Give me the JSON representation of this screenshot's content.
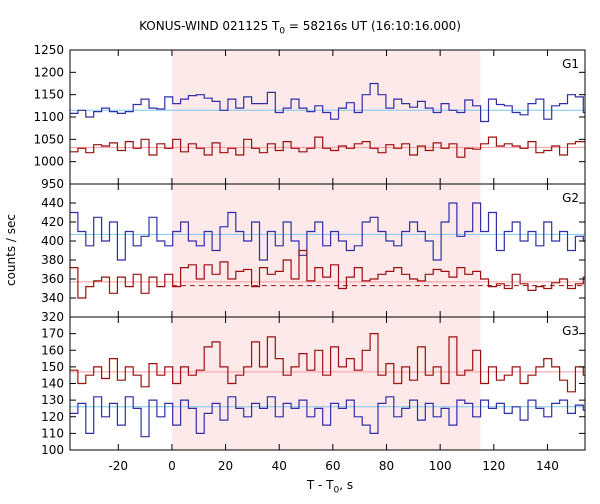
{
  "title": {
    "main": "KONUS-WIND 021125 T",
    "sub": "0",
    "rest": " = 58216s UT (16:10:16.000)"
  },
  "xlabel": {
    "main": "T - T",
    "sub": "0",
    "rest": ", s"
  },
  "ylabel": "counts / sec",
  "colors": {
    "red": "#9b0f0f",
    "blue": "#2f2fa8",
    "red_bg": "#ff9aa0",
    "blue_bg": "#7ec8ec",
    "shade": "#fde8ea"
  },
  "chart_data": {
    "type": "line",
    "shared_x": {
      "range": [
        -38,
        154
      ],
      "ticks": [
        -20,
        0,
        20,
        40,
        60,
        80,
        100,
        120,
        140
      ],
      "bin_width": 2.944,
      "bins_start": -38,
      "highlight_interval": [
        0,
        115
      ]
    },
    "panels": [
      {
        "label": "G1",
        "ylim": [
          950,
          1250
        ],
        "yticks": [
          950,
          1000,
          1050,
          1100,
          1150,
          1200,
          1250
        ],
        "series": [
          {
            "color": "blue",
            "background": 1115,
            "values": [
              1108,
              1115,
              1100,
              1112,
              1120,
              1112,
              1108,
              1112,
              1128,
              1140,
              1120,
              1118,
              1145,
              1130,
              1140,
              1148,
              1150,
              1142,
              1135,
              1115,
              1140,
              1120,
              1145,
              1130,
              1130,
              1155,
              1110,
              1120,
              1140,
              1120,
              1112,
              1125,
              1110,
              1095,
              1120,
              1132,
              1110,
              1150,
              1175,
              1150,
              1120,
              1140,
              1130,
              1122,
              1135,
              1120,
              1110,
              1130,
              1115,
              1110,
              1138,
              1125,
              1090,
              1140,
              1128,
              1125,
              1110,
              1105,
              1130,
              1140,
              1095,
              1125,
              1130,
              1150,
              1145,
              1110
            ]
          },
          {
            "color": "red",
            "background": 1032,
            "values": [
              1022,
              1030,
              1020,
              1038,
              1035,
              1042,
              1025,
              1045,
              1030,
              1050,
              1015,
              1040,
              1030,
              1050,
              1022,
              1040,
              1030,
              1015,
              1042,
              1020,
              1030,
              1015,
              1050,
              1030,
              1020,
              1040,
              1025,
              1045,
              1030,
              1022,
              1030,
              1055,
              1030,
              1025,
              1035,
              1030,
              1040,
              1045,
              1030,
              1020,
              1038,
              1030,
              1040,
              1015,
              1035,
              1025,
              1042,
              1030,
              1040,
              1010,
              1030,
              1028,
              1040,
              1055,
              1035,
              1040,
              1035,
              1030,
              1045,
              1020,
              1025,
              1035,
              1015,
              1040,
              1045,
              1045
            ]
          }
        ]
      },
      {
        "label": "G2",
        "ylim": [
          320,
          460
        ],
        "yticks": [
          320,
          340,
          360,
          380,
          400,
          420,
          440
        ],
        "series": [
          {
            "color": "blue",
            "background": 407,
            "values": [
              430,
              410,
              395,
              425,
              400,
              420,
              380,
              410,
              395,
              405,
              425,
              400,
              395,
              410,
              420,
              400,
              395,
              410,
              390,
              415,
              430,
              410,
              400,
              420,
              380,
              410,
              395,
              420,
              400,
              385,
              410,
              420,
              395,
              410,
              400,
              390,
              395,
              420,
              425,
              410,
              400,
              395,
              410,
              420,
              410,
              400,
              380,
              420,
              440,
              405,
              410,
              440,
              410,
              430,
              390,
              410,
              420,
              400,
              410,
              395,
              420,
              400,
              410,
              390,
              405,
              400
            ]
          },
          {
            "color": "red",
            "background": 357,
            "dashed_from": 0,
            "dashed_level": 353,
            "values": [
              372,
              340,
              352,
              358,
              362,
              345,
              362,
              352,
              365,
              345,
              362,
              352,
              365,
              352,
              372,
              375,
              360,
              375,
              365,
              378,
              360,
              368,
              370,
              352,
              372,
              365,
              368,
              380,
              360,
              390,
              358,
              372,
              362,
              375,
              350,
              362,
              372,
              358,
              360,
              365,
              368,
              372,
              365,
              360,
              358,
              365,
              370,
              368,
              362,
              372,
              365,
              368,
              360,
              352,
              355,
              350,
              365,
              355,
              348,
              352,
              350,
              356,
              360,
              350,
              355,
              362
            ]
          }
        ]
      },
      {
        "label": "G3",
        "ylim": [
          100,
          180
        ],
        "yticks": [
          100,
          110,
          120,
          130,
          140,
          150,
          160,
          170
        ],
        "series": [
          {
            "color": "red",
            "background": 147,
            "values": [
              148,
              140,
              145,
              150,
              143,
              155,
              142,
              150,
              145,
              138,
              152,
              145,
              150,
              140,
              150,
              145,
              148,
              162,
              165,
              150,
              140,
              145,
              150,
              165,
              150,
              168,
              155,
              145,
              150,
              158,
              148,
              160,
              145,
              162,
              150,
              155,
              148,
              160,
              170,
              145,
              152,
              140,
              150,
              142,
              162,
              145,
              150,
              140,
              168,
              145,
              148,
              160,
              140,
              150,
              142,
              145,
              150,
              140,
              145,
              150,
              155,
              150,
              142,
              135,
              150,
              145
            ]
          },
          {
            "color": "blue",
            "background": 126,
            "values": [
              122,
              128,
              110,
              132,
              120,
              128,
              115,
              132,
              125,
              108,
              130,
              120,
              128,
              115,
              130,
              125,
              110,
              122,
              128,
              118,
              132,
              125,
              120,
              128,
              125,
              132,
              120,
              128,
              125,
              130,
              120,
              125,
              115,
              128,
              125,
              130,
              120,
              115,
              110,
              128,
              132,
              120,
              125,
              130,
              118,
              128,
              120,
              125,
              115,
              130,
              128,
              120,
              130,
              125,
              128,
              122,
              126,
              118,
              130,
              125,
              120,
              128,
              130,
              122,
              127,
              124
            ]
          }
        ]
      }
    ]
  }
}
